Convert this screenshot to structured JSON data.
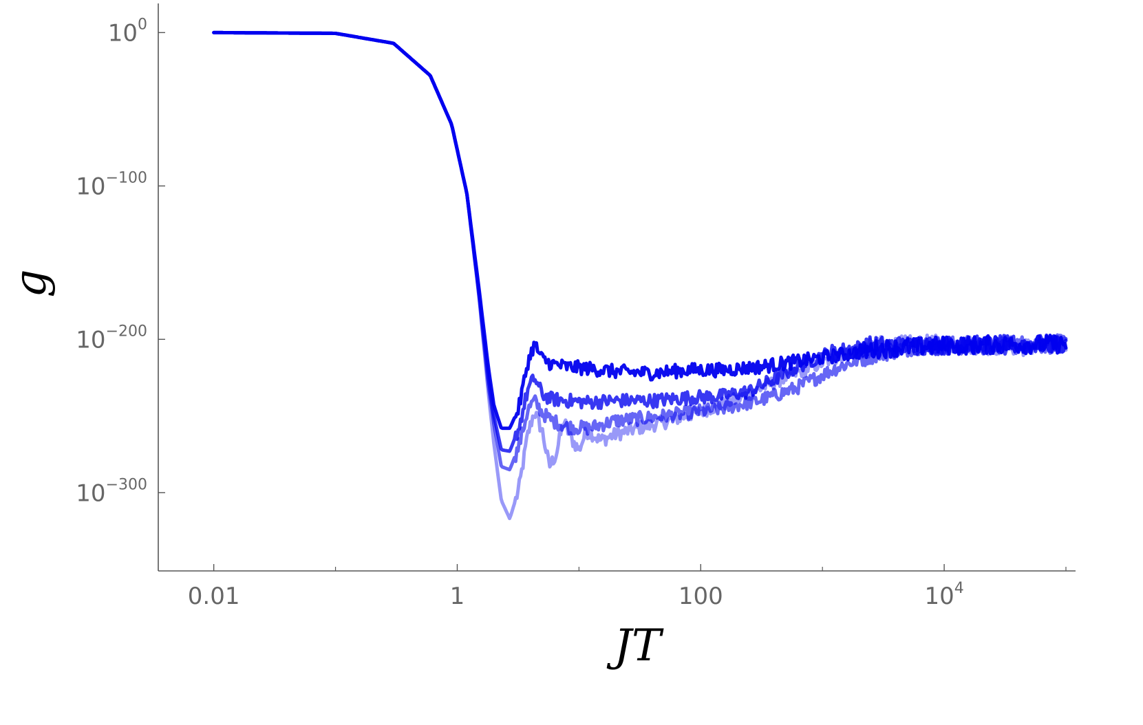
{
  "chart_data": {
    "type": "line",
    "xlabel": "JT",
    "ylabel": "g",
    "x_scale": "log",
    "y_scale": "log",
    "xlim": [
      0.0035,
      120000
    ],
    "ylim_log10": [
      -351,
      19
    ],
    "x_ticks": [
      {
        "value": 0.01,
        "label": "0.01",
        "exp": ""
      },
      {
        "value": 1,
        "label": "1",
        "exp": ""
      },
      {
        "value": 100,
        "label": "100",
        "exp": ""
      },
      {
        "value": 10000,
        "label": "10",
        "exp": "4"
      }
    ],
    "x_minor_ticks": [
      0.1,
      10,
      1000,
      100000
    ],
    "y_ticks": [
      {
        "log10": 0,
        "base": "10",
        "exp": "0"
      },
      {
        "log10": -100,
        "base": "10",
        "exp": "−100"
      },
      {
        "log10": -200,
        "base": "10",
        "exp": "−200"
      },
      {
        "log10": -300,
        "base": "10",
        "exp": "−300"
      }
    ],
    "grid": false,
    "legend": "none",
    "colors": {
      "line": "#0000ee",
      "axis": "#555555",
      "tick_label": "#666666"
    },
    "series": [
      {
        "opacity": 0.4,
        "points": [
          [
            0.01,
            0
          ],
          [
            0.1,
            -0.5
          ],
          [
            0.3,
            -7
          ],
          [
            0.6,
            -28
          ],
          [
            0.9,
            -60
          ],
          [
            1.2,
            -105
          ],
          [
            1.5,
            -170
          ],
          [
            1.8,
            -235
          ],
          [
            2.0,
            -268
          ],
          [
            2.3,
            -305
          ],
          [
            2.7,
            -317
          ],
          [
            3.2,
            -298
          ],
          [
            3.8,
            -262
          ],
          [
            4.3,
            -247
          ],
          [
            5.0,
            -260
          ],
          [
            5.7,
            -283
          ],
          [
            6.5,
            -275
          ],
          [
            7.5,
            -253
          ],
          [
            8.5,
            -264
          ],
          [
            10,
            -272
          ],
          [
            11.5,
            -260
          ],
          [
            13,
            -262
          ],
          [
            15,
            -266
          ],
          [
            20,
            -262
          ],
          [
            30,
            -258
          ],
          [
            50,
            -254
          ],
          [
            100,
            -247
          ],
          [
            200,
            -239
          ],
          [
            400,
            -228
          ],
          [
            700,
            -220
          ],
          [
            1500,
            -210
          ],
          [
            3000,
            -204
          ],
          [
            10000,
            -203
          ],
          [
            50000,
            -205
          ],
          [
            100000,
            -203
          ]
        ]
      },
      {
        "opacity": 0.6,
        "points": [
          [
            0.01,
            0
          ],
          [
            0.1,
            -0.5
          ],
          [
            0.3,
            -7
          ],
          [
            0.6,
            -28
          ],
          [
            0.9,
            -60
          ],
          [
            1.2,
            -105
          ],
          [
            1.5,
            -170
          ],
          [
            1.8,
            -230
          ],
          [
            2.0,
            -255
          ],
          [
            2.3,
            -283
          ],
          [
            2.7,
            -285
          ],
          [
            3.2,
            -270
          ],
          [
            3.8,
            -246
          ],
          [
            4.3,
            -240
          ],
          [
            5.0,
            -248
          ],
          [
            6.0,
            -253
          ],
          [
            8,
            -257
          ],
          [
            12,
            -258
          ],
          [
            20,
            -253
          ],
          [
            40,
            -251
          ],
          [
            80,
            -248
          ],
          [
            150,
            -245
          ],
          [
            300,
            -240
          ],
          [
            600,
            -232
          ],
          [
            1200,
            -220
          ],
          [
            2500,
            -210
          ],
          [
            6000,
            -204
          ],
          [
            20000,
            -204
          ],
          [
            100000,
            -203
          ]
        ]
      },
      {
        "opacity": 0.78,
        "points": [
          [
            0.01,
            0
          ],
          [
            0.1,
            -0.5
          ],
          [
            0.3,
            -7
          ],
          [
            0.6,
            -28
          ],
          [
            0.9,
            -60
          ],
          [
            1.2,
            -105
          ],
          [
            1.5,
            -168
          ],
          [
            1.8,
            -225
          ],
          [
            2.0,
            -250
          ],
          [
            2.3,
            -272
          ],
          [
            2.7,
            -273
          ],
          [
            3.2,
            -258
          ],
          [
            3.8,
            -233
          ],
          [
            4.3,
            -225
          ],
          [
            5.0,
            -236
          ],
          [
            6.0,
            -239
          ],
          [
            8,
            -240
          ],
          [
            12,
            -241
          ],
          [
            20,
            -240
          ],
          [
            40,
            -240
          ],
          [
            80,
            -238
          ],
          [
            150,
            -237
          ],
          [
            250,
            -234
          ],
          [
            400,
            -226
          ],
          [
            700,
            -216
          ],
          [
            1200,
            -208
          ],
          [
            2500,
            -204
          ],
          [
            10000,
            -204
          ],
          [
            100000,
            -203
          ]
        ]
      },
      {
        "opacity": 0.95,
        "points": [
          [
            0.01,
            0
          ],
          [
            0.1,
            -0.5
          ],
          [
            0.3,
            -7
          ],
          [
            0.6,
            -28
          ],
          [
            0.9,
            -60
          ],
          [
            1.2,
            -105
          ],
          [
            1.5,
            -165
          ],
          [
            1.8,
            -218
          ],
          [
            2.0,
            -243
          ],
          [
            2.3,
            -258
          ],
          [
            2.7,
            -258
          ],
          [
            3.2,
            -245
          ],
          [
            3.8,
            -215
          ],
          [
            4.3,
            -203
          ],
          [
            5.0,
            -213
          ],
          [
            6.0,
            -216
          ],
          [
            8,
            -218
          ],
          [
            12,
            -219
          ],
          [
            20,
            -221
          ],
          [
            40,
            -222
          ],
          [
            80,
            -220
          ],
          [
            150,
            -220
          ],
          [
            300,
            -218
          ],
          [
            1000,
            -212
          ],
          [
            3000,
            -206
          ],
          [
            10000,
            -204
          ],
          [
            100000,
            -203
          ]
        ]
      }
    ]
  }
}
